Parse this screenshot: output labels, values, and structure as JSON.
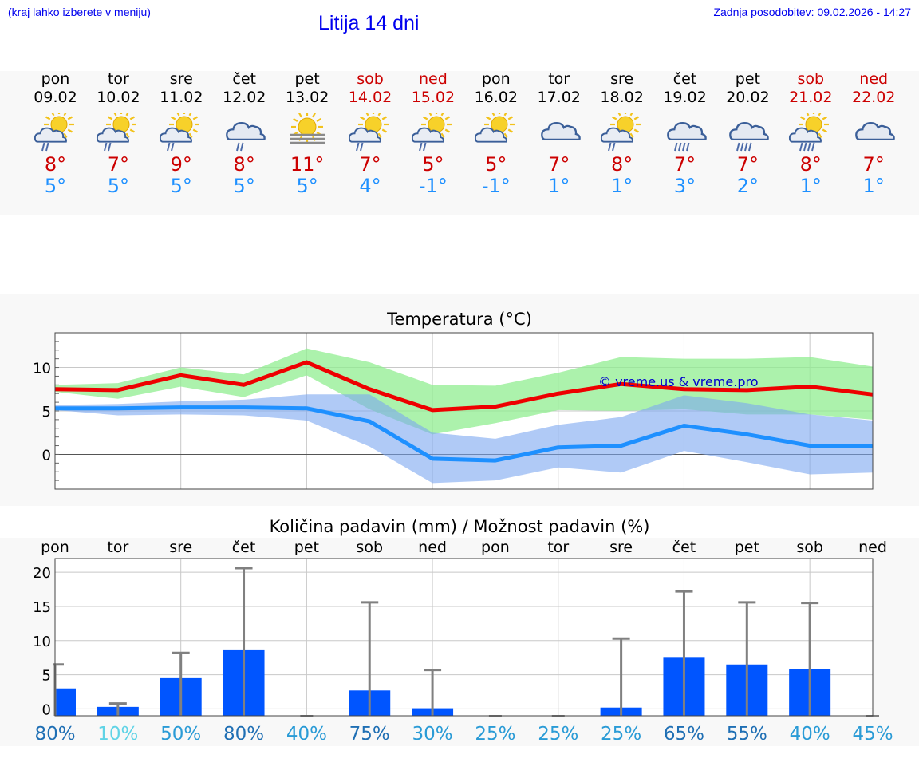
{
  "header": {
    "menu_hint": "(kraj lahko izberete v meniju)",
    "title": "Litija 14 dni",
    "updated": "Zadnja posodobitev: 09.02.2026 - 14:27"
  },
  "colors": {
    "max": "#ee0000",
    "min": "#1e90ff",
    "precip": "#0055ff",
    "green_band": "#90ee90",
    "blue_band": "#7ba7f0"
  },
  "days": [
    {
      "name": "pon",
      "date": "09.02",
      "weekend": false,
      "icon": "sun-cloud-rain-icon",
      "tmax": "8°",
      "tmin": "5°"
    },
    {
      "name": "tor",
      "date": "10.02",
      "weekend": false,
      "icon": "sun-cloud-rain-icon",
      "tmax": "7°",
      "tmin": "5°"
    },
    {
      "name": "sre",
      "date": "11.02",
      "weekend": false,
      "icon": "sun-cloud-rain-icon",
      "tmax": "9°",
      "tmin": "5°"
    },
    {
      "name": "čet",
      "date": "12.02",
      "weekend": false,
      "icon": "cloud-rain-icon",
      "tmax": "8°",
      "tmin": "5°"
    },
    {
      "name": "pet",
      "date": "13.02",
      "weekend": false,
      "icon": "sun-fog-icon",
      "tmax": "11°",
      "tmin": "5°"
    },
    {
      "name": "sob",
      "date": "14.02",
      "weekend": true,
      "icon": "sun-cloud-rain-icon",
      "tmax": "7°",
      "tmin": "4°"
    },
    {
      "name": "ned",
      "date": "15.02",
      "weekend": true,
      "icon": "sun-cloud-rain-icon",
      "tmax": "5°",
      "tmin": "-1°"
    },
    {
      "name": "pon",
      "date": "16.02",
      "weekend": false,
      "icon": "sun-cloud-icon",
      "tmax": "5°",
      "tmin": "-1°"
    },
    {
      "name": "tor",
      "date": "17.02",
      "weekend": false,
      "icon": "cloud-icon",
      "tmax": "7°",
      "tmin": "1°"
    },
    {
      "name": "sre",
      "date": "18.02",
      "weekend": false,
      "icon": "sun-cloud-rain-icon",
      "tmax": "8°",
      "tmin": "1°"
    },
    {
      "name": "čet",
      "date": "19.02",
      "weekend": false,
      "icon": "cloud-heavy-rain-icon",
      "tmax": "7°",
      "tmin": "3°"
    },
    {
      "name": "pet",
      "date": "20.02",
      "weekend": false,
      "icon": "cloud-heavy-rain-icon",
      "tmax": "7°",
      "tmin": "2°"
    },
    {
      "name": "sob",
      "date": "21.02",
      "weekend": true,
      "icon": "sun-cloud-heavy-rain-icon",
      "tmax": "8°",
      "tmin": "1°"
    },
    {
      "name": "ned",
      "date": "22.02",
      "weekend": true,
      "icon": "cloud-icon",
      "tmax": "7°",
      "tmin": "1°"
    }
  ],
  "chart_data": [
    {
      "type": "line",
      "title": "Temperatura (°C)",
      "watermark": "© vreme.us & vreme.pro",
      "x": [
        0,
        1,
        2,
        3,
        4,
        5,
        6,
        7,
        8,
        9,
        10,
        11,
        12,
        13
      ],
      "ylim": [
        -4,
        14
      ],
      "yticks": [
        "10",
        "5",
        "0"
      ],
      "ytick_values": [
        10,
        5,
        0
      ],
      "series": [
        {
          "name": "max",
          "values": [
            7.5,
            7.4,
            9.1,
            8.0,
            10.6,
            7.5,
            5.1,
            5.5,
            7.0,
            8.1,
            7.5,
            7.4,
            7.8,
            6.9
          ],
          "upper": [
            8.0,
            8.2,
            10.0,
            9.2,
            12.2,
            10.6,
            8.0,
            7.9,
            9.4,
            11.2,
            11.0,
            11.0,
            11.2,
            10.1
          ],
          "lower": [
            7.2,
            6.4,
            7.8,
            6.6,
            9.1,
            5.2,
            2.3,
            3.6,
            5.1,
            5.0,
            5.2,
            4.6,
            4.6,
            4.0
          ]
        },
        {
          "name": "min",
          "values": [
            5.3,
            5.3,
            5.4,
            5.4,
            5.3,
            3.8,
            -0.5,
            -0.7,
            0.8,
            1.0,
            3.3,
            2.3,
            1.0,
            1.0
          ],
          "upper": [
            5.7,
            5.8,
            6.1,
            6.3,
            6.9,
            6.9,
            2.5,
            1.8,
            3.4,
            4.3,
            6.8,
            5.9,
            4.6,
            3.9
          ],
          "lower": [
            5.1,
            4.5,
            4.6,
            4.5,
            3.9,
            0.9,
            -3.3,
            -3.0,
            -1.5,
            -2.1,
            0.4,
            -0.9,
            -2.3,
            -2.1
          ]
        }
      ]
    },
    {
      "type": "bar",
      "title": "Količina padavin (mm) / Možnost padavin (%)",
      "categories": [
        "pon",
        "tor",
        "sre",
        "čet",
        "pet",
        "sob",
        "ned",
        "pon",
        "tor",
        "sre",
        "čet",
        "pet",
        "sob",
        "ned"
      ],
      "ylim": [
        -1,
        22
      ],
      "yticks": [
        "20",
        "15",
        "10",
        "5",
        "0"
      ],
      "ytick_values": [
        20,
        15,
        10,
        5,
        0
      ],
      "values": [
        3.0,
        0.3,
        4.5,
        8.7,
        0,
        2.7,
        0.1,
        0,
        0,
        0.2,
        7.6,
        6.5,
        5.8,
        0
      ],
      "error_high": [
        6.5,
        0.8,
        8.2,
        20.6,
        0,
        15.6,
        5.7,
        0,
        0,
        10.3,
        17.2,
        15.6,
        15.5,
        0
      ],
      "error_low": [
        0,
        0,
        0,
        0,
        0,
        0,
        0,
        0,
        0,
        0,
        0,
        0,
        0,
        0
      ],
      "probabilities": [
        "80%",
        "10%",
        "50%",
        "80%",
        "40%",
        "75%",
        "30%",
        "25%",
        "25%",
        "25%",
        "65%",
        "55%",
        "40%",
        "45%"
      ],
      "prob_colors": [
        "#1f6fb4",
        "#5fd3e6",
        "#2a9bd6",
        "#1f6fb4",
        "#2a9bd6",
        "#1f6fb4",
        "#2a9bd6",
        "#2a9bd6",
        "#2a9bd6",
        "#2a9bd6",
        "#1f6fb4",
        "#1f6fb4",
        "#2a9bd6",
        "#2a9bd6"
      ]
    }
  ]
}
